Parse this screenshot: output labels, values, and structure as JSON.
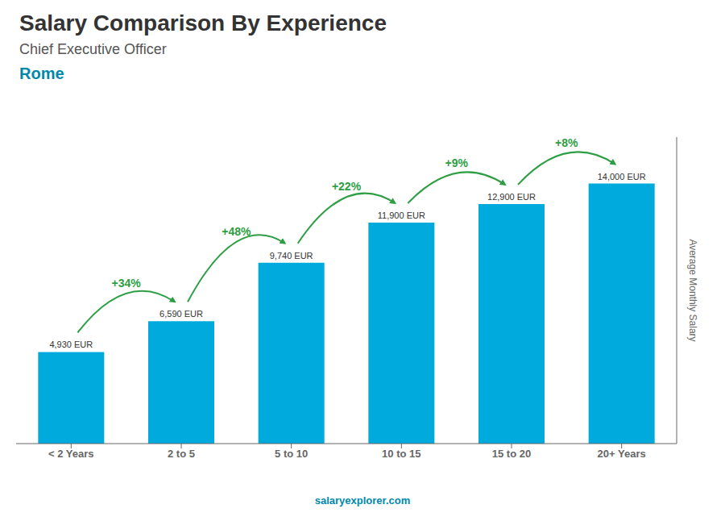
{
  "chart_data": {
    "type": "bar",
    "title": "Salary Comparison By Experience",
    "subtitle": [
      "Chief Executive Officer",
      "Rome"
    ],
    "y_label": "Average Monthly Salary",
    "categories": [
      "< 2 Years",
      "2 to 5",
      "5 to 10",
      "10 to 15",
      "15 to 20",
      "20+ Years"
    ],
    "values": [
      4930,
      6590,
      9740,
      11900,
      12900,
      14000
    ],
    "value_labels": [
      "4,930 EUR",
      "6,590 EUR",
      "9,740 EUR",
      "11,900 EUR",
      "12,900 EUR",
      "14,000 EUR"
    ],
    "data_labels": true,
    "color": "#00aadd",
    "ylim": [
      0,
      16500
    ],
    "tick_labels": "x",
    "grid": false,
    "annotations": [
      {
        "text": "+34%",
        "between": [
          "< 2 Years",
          "2 to 5"
        ]
      },
      {
        "text": "+48%",
        "between": [
          "2 to 5",
          "5 to 10"
        ]
      },
      {
        "text": "+22%",
        "between": [
          "5 to 10",
          "10 to 15"
        ]
      },
      {
        "text": "+9%",
        "between": [
          "10 to 15",
          "15 to 20"
        ]
      },
      {
        "text": "+8%",
        "between": [
          "15 to 20",
          "20+ Years"
        ]
      },
      {
        "text": "salaryexplorer.com"
      }
    ]
  }
}
